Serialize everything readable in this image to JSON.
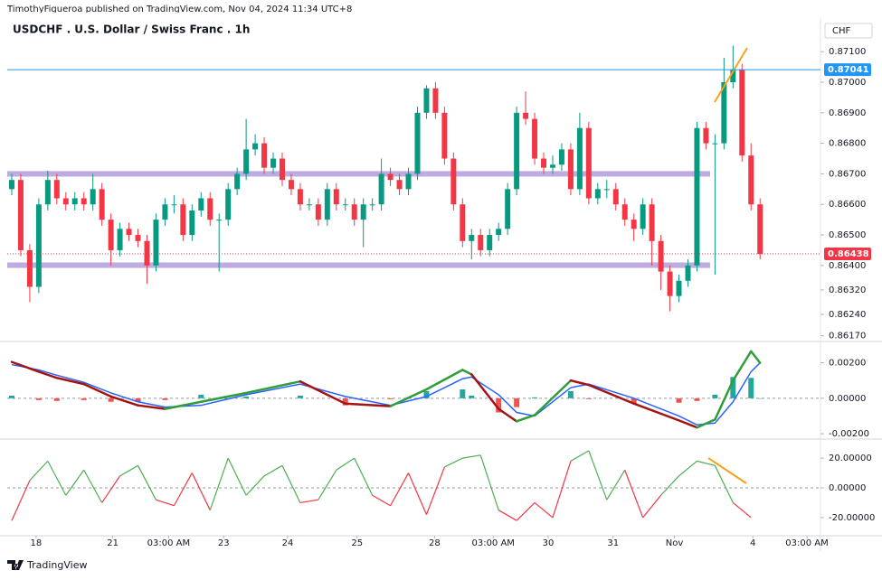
{
  "header": "TimothyFigueroa published on TradingView.com, Nov 04, 2024 11:34 UTC+8",
  "footer": "TradingView",
  "chart_data": [
    {
      "type": "candlestick",
      "title": "USDCHF . U.S. Dollar / Swiss Franc . 1h",
      "currency": "CHF",
      "up_color": "#089981",
      "down_color": "#f23645",
      "xlim": [
        -0.5,
        89.5
      ],
      "xticks": [
        {
          "value": 2.7,
          "label": "18"
        },
        {
          "value": 11.2,
          "label": "21"
        },
        {
          "value": 17.4,
          "label": "03:00 AM"
        },
        {
          "value": 23.5,
          "label": "23"
        },
        {
          "value": 30.6,
          "label": "24"
        },
        {
          "value": 38.3,
          "label": "25"
        },
        {
          "value": 46.9,
          "label": "28"
        },
        {
          "value": 53.4,
          "label": "03:00 AM"
        },
        {
          "value": 59.5,
          "label": "30"
        },
        {
          "value": 66.7,
          "label": "31"
        },
        {
          "value": 73.5,
          "label": "Nov"
        },
        {
          "value": 82.2,
          "label": "4"
        },
        {
          "value": 88.2,
          "label": "03:00 AM"
        }
      ],
      "open": [
        0.8665,
        0.8668,
        0.8645,
        0.8633,
        0.866,
        0.8668,
        0.8662,
        0.866,
        0.8662,
        0.866,
        0.8665,
        0.8655,
        0.8645,
        0.8652,
        0.865,
        0.8648,
        0.864,
        0.8655,
        0.866,
        0.866,
        0.865,
        0.8658,
        0.8662,
        0.8655,
        0.8655,
        0.8665,
        0.867,
        0.8678,
        0.868,
        0.8672,
        0.8675,
        0.8668,
        0.8665,
        0.866,
        0.866,
        0.8655,
        0.8665,
        0.866,
        0.866,
        0.8655,
        0.866,
        0.866,
        0.867,
        0.8668,
        0.8665,
        0.867,
        0.869,
        0.8698,
        0.869,
        0.8675,
        0.866,
        0.8648,
        0.865,
        0.8645,
        0.865,
        0.8652,
        0.8665,
        0.869,
        0.8688,
        0.8675,
        0.8672,
        0.8673,
        0.8678,
        0.8665,
        0.8685,
        0.8662,
        0.8665,
        0.8665,
        0.866,
        0.8655,
        0.8652,
        0.866,
        0.8648,
        0.8638,
        0.863,
        0.8635,
        0.864,
        0.8685,
        0.868,
        0.868,
        0.87,
        0.8704,
        0.8676,
        0.866
      ],
      "high": [
        0.867,
        0.867,
        0.8647,
        0.8662,
        0.8671,
        0.867,
        0.8664,
        0.8664,
        0.8664,
        0.867,
        0.8667,
        0.8657,
        0.8654,
        0.8654,
        0.8652,
        0.865,
        0.8657,
        0.8662,
        0.8663,
        0.8662,
        0.866,
        0.8664,
        0.8664,
        0.8657,
        0.8667,
        0.8672,
        0.8688,
        0.8683,
        0.8682,
        0.8677,
        0.8677,
        0.867,
        0.8667,
        0.8662,
        0.8662,
        0.8667,
        0.8667,
        0.8662,
        0.8662,
        0.8662,
        0.8662,
        0.8675,
        0.8672,
        0.867,
        0.8672,
        0.8692,
        0.8699,
        0.87,
        0.8692,
        0.8677,
        0.8662,
        0.8652,
        0.8652,
        0.8652,
        0.8654,
        0.8667,
        0.8692,
        0.8697,
        0.869,
        0.8677,
        0.8676,
        0.868,
        0.868,
        0.869,
        0.8687,
        0.8667,
        0.8668,
        0.8667,
        0.8662,
        0.8657,
        0.8662,
        0.8662,
        0.865,
        0.864,
        0.8637,
        0.8642,
        0.8687,
        0.8687,
        0.8683,
        0.8708,
        0.8712,
        0.8706,
        0.868,
        0.8662
      ],
      "low": [
        0.8663,
        0.8643,
        0.8628,
        0.8631,
        0.8658,
        0.866,
        0.8658,
        0.8658,
        0.8658,
        0.8658,
        0.8653,
        0.864,
        0.8643,
        0.8648,
        0.8646,
        0.8634,
        0.8638,
        0.8653,
        0.8657,
        0.8648,
        0.8648,
        0.8656,
        0.8653,
        0.8638,
        0.8653,
        0.8663,
        0.8668,
        0.8676,
        0.867,
        0.867,
        0.8666,
        0.8663,
        0.8658,
        0.8658,
        0.8653,
        0.8653,
        0.8658,
        0.8658,
        0.8653,
        0.8646,
        0.8658,
        0.8658,
        0.8666,
        0.8663,
        0.8663,
        0.8668,
        0.8688,
        0.8688,
        0.8673,
        0.8658,
        0.8646,
        0.8642,
        0.8643,
        0.8643,
        0.8648,
        0.865,
        0.8663,
        0.8686,
        0.8673,
        0.867,
        0.867,
        0.8671,
        0.8663,
        0.8663,
        0.866,
        0.866,
        0.8662,
        0.8658,
        0.8653,
        0.8648,
        0.865,
        0.864,
        0.8632,
        0.8625,
        0.8628,
        0.8633,
        0.8638,
        0.8678,
        0.8637,
        0.8678,
        0.8698,
        0.8674,
        0.8658,
        0.8642
      ],
      "close": [
        0.8668,
        0.8645,
        0.8633,
        0.866,
        0.8668,
        0.8662,
        0.866,
        0.8662,
        0.866,
        0.8665,
        0.8655,
        0.8645,
        0.8652,
        0.865,
        0.8648,
        0.864,
        0.8655,
        0.866,
        0.866,
        0.865,
        0.8658,
        0.8662,
        0.8655,
        0.8655,
        0.8665,
        0.867,
        0.8678,
        0.868,
        0.8672,
        0.8675,
        0.8668,
        0.8665,
        0.866,
        0.866,
        0.8655,
        0.8665,
        0.866,
        0.866,
        0.8655,
        0.866,
        0.866,
        0.867,
        0.8668,
        0.8665,
        0.867,
        0.869,
        0.8698,
        0.869,
        0.8675,
        0.866,
        0.8648,
        0.865,
        0.8645,
        0.865,
        0.8652,
        0.8665,
        0.869,
        0.8688,
        0.8675,
        0.8672,
        0.8673,
        0.8678,
        0.8665,
        0.8685,
        0.8662,
        0.8665,
        0.8665,
        0.866,
        0.8655,
        0.8652,
        0.866,
        0.8648,
        0.8638,
        0.863,
        0.8635,
        0.864,
        0.8685,
        0.868,
        0.868,
        0.87,
        0.8704,
        0.8676,
        0.866,
        0.86438
      ],
      "ylim": [
        0.8616,
        0.8721
      ],
      "yticks": [
        {
          "value": 0.871,
          "label": "0.87100"
        },
        {
          "value": 0.87,
          "label": "0.87000"
        },
        {
          "value": 0.869,
          "label": "0.86900"
        },
        {
          "value": 0.868,
          "label": "0.86800"
        },
        {
          "value": 0.867,
          "label": "0.86700"
        },
        {
          "value": 0.866,
          "label": "0.86600"
        },
        {
          "value": 0.865,
          "label": "0.86500"
        },
        {
          "value": 0.864,
          "label": "0.86400"
        },
        {
          "value": 0.8632,
          "label": "0.86320"
        },
        {
          "value": 0.8624,
          "label": "0.86240"
        },
        {
          "value": 0.8617,
          "label": "0.86170"
        }
      ],
      "price_lines": [
        {
          "value": 0.87041,
          "label": "0.87041",
          "color": "#2196f3"
        },
        {
          "value": 0.86438,
          "label": "0.86438",
          "color": "#f23645"
        }
      ],
      "zones": [
        [
          0.86691,
          0.86709
        ],
        [
          0.86392,
          0.8641
        ]
      ],
      "zone_color": "#b39ddb"
    },
    {
      "type": "macd",
      "x": [
        0,
        3,
        5,
        8,
        11,
        14,
        17,
        21,
        26,
        32,
        37,
        42,
        46,
        50,
        51,
        54,
        56,
        58,
        62,
        64,
        69,
        74,
        76,
        78,
        80,
        82,
        83
      ],
      "series": [
        {
          "color": "#2e9d3a",
          "down_color": "#a31515",
          "values": [
            0.00205,
            0.0015,
            0.00115,
            0.0008,
            0.0001,
            -0.0004,
            -0.0006,
            -0.0002,
            0.0003,
            0.00095,
            -0.0003,
            -0.00045,
            0.0005,
            0.0016,
            0.00135,
            -0.0006,
            -0.0013,
            -0.00095,
            0.001,
            0.00075,
            -0.0003,
            -0.00125,
            -0.00165,
            -0.0012,
            0.001,
            0.00265,
            0.002
          ]
        },
        {
          "color": "#2962ff",
          "values": [
            0.0019,
            0.0016,
            0.0013,
            0.0009,
            0.0003,
            -0.0002,
            -0.0005,
            -0.0004,
            0.0002,
            0.0008,
            0.0001,
            -0.0004,
            0.0001,
            0.0011,
            0.0012,
            0.0002,
            -0.0008,
            -0.001,
            0.0006,
            0.0008,
            0.0,
            -0.001,
            -0.0015,
            -0.0014,
            -0.0002,
            0.0015,
            0.002
          ]
        }
      ],
      "histogram": {
        "up_color": "#26a69a",
        "down_color": "#ef5350",
        "values": [
          0.00015,
          -0.0001,
          -0.00015,
          -0.0001,
          -0.0002,
          -0.0002,
          -0.0001,
          0.0002,
          0.0001,
          0.00015,
          -0.0004,
          -5e-05,
          0.0004,
          0.0005,
          0.00015,
          -0.0008,
          -0.0005,
          5e-05,
          0.0004,
          -5e-05,
          -0.0003,
          -0.00025,
          -0.00015,
          0.0002,
          0.0012,
          0.00115,
          0.0
        ]
      },
      "ylim": [
        -0.0022,
        0.00305
      ],
      "yticks": [
        {
          "value": 0.002,
          "label": "0.00200"
        },
        {
          "value": 0,
          "label": "0.00000"
        },
        {
          "value": -0.002,
          "label": "-0.00200"
        }
      ]
    },
    {
      "type": "oscillator",
      "x": [
        0,
        2,
        4,
        6,
        8,
        10,
        12,
        14,
        16,
        18,
        20,
        22,
        24,
        26,
        28,
        30,
        32,
        34,
        36,
        38,
        40,
        42,
        44,
        46,
        48,
        50,
        52,
        54,
        56,
        58,
        60,
        62,
        64,
        66,
        68,
        70,
        72,
        74,
        76,
        78,
        80,
        82
      ],
      "values": [
        -22,
        5,
        18,
        -5,
        12,
        -10,
        8,
        15,
        -8,
        -12,
        10,
        -15,
        20,
        -5,
        8,
        15,
        -10,
        -8,
        12,
        20,
        -5,
        -12,
        10,
        -18,
        14,
        20,
        22,
        -15,
        -22,
        -10,
        -20,
        18,
        25,
        -8,
        12,
        -20,
        -5,
        8,
        18,
        15,
        -10,
        -20
      ],
      "up_color": "#4caf50",
      "down_color": "#f23645",
      "ylim": [
        -31,
        31
      ],
      "yticks": [
        {
          "value": 20,
          "label": "20.00000"
        },
        {
          "value": 0,
          "label": "0.00000"
        },
        {
          "value": -20,
          "label": "-20.00000"
        }
      ]
    }
  ]
}
